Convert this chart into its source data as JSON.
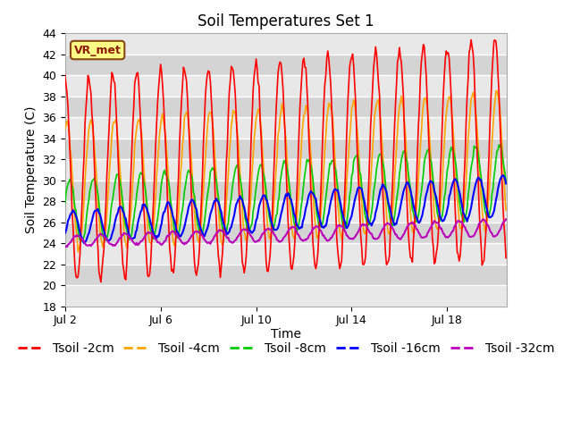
{
  "title": "Soil Temperatures Set 1",
  "xlabel": "Time",
  "ylabel": "Soil Temperature (C)",
  "ylim": [
    18,
    44
  ],
  "yticks": [
    18,
    20,
    22,
    24,
    26,
    28,
    30,
    32,
    34,
    36,
    38,
    40,
    42,
    44
  ],
  "xlim_days": [
    0,
    18.5
  ],
  "x_tick_labels": [
    "Jul 2",
    "Jul 6",
    "Jul 10",
    "Jul 14",
    "Jul 18"
  ],
  "x_tick_positions": [
    0,
    4,
    8,
    12,
    16
  ],
  "colors": {
    "Tsoil -2cm": "#ff0000",
    "Tsoil -4cm": "#ffa500",
    "Tsoil -8cm": "#00cc00",
    "Tsoil -16cm": "#0000ff",
    "Tsoil -32cm": "#bb00bb"
  },
  "annotation_text": "VR_met",
  "band_colors": [
    "#e8e8e8",
    "#d4d4d4"
  ],
  "fig_bg": "#ffffff",
  "plot_bg": "#f0f0f0",
  "title_fontsize": 12,
  "axis_label_fontsize": 10,
  "tick_fontsize": 9,
  "legend_fontsize": 10
}
